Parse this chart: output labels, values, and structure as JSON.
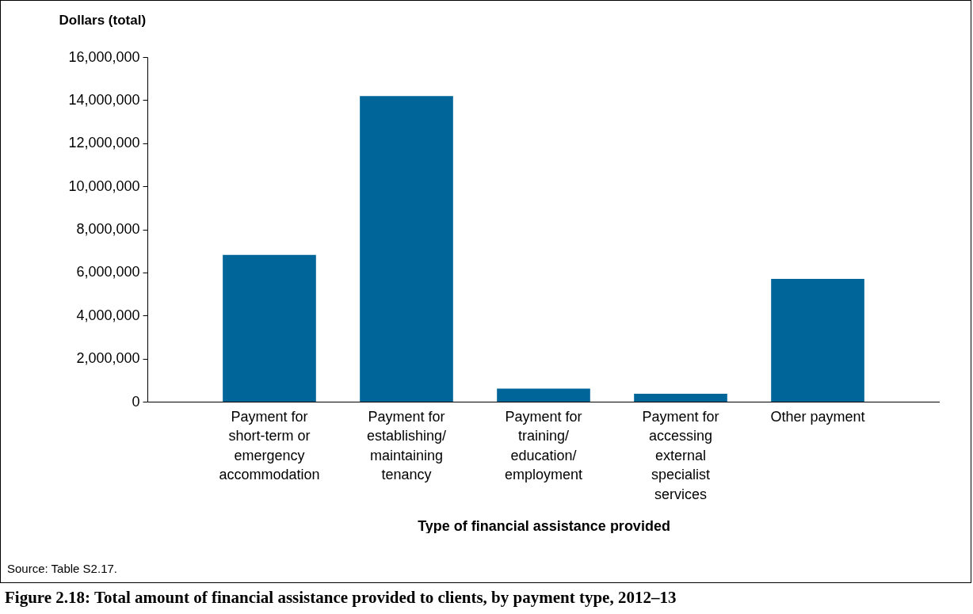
{
  "chart_data": {
    "type": "bar",
    "title": "Figure 2.18: Total amount of financial assistance provided to clients, by payment type, 2012–13",
    "xlabel": "Type of financial assistance provided",
    "ylabel": "Dollars (total)",
    "categories": [
      "Payment for short-term or emergency accommodation",
      "Payment for establishing/maintaining tenancy",
      "Payment for training/education/employment",
      "Payment for accessing external specialist services",
      "Other payment"
    ],
    "values": [
      6810000,
      14190000,
      610000,
      370000,
      5700000
    ],
    "color": "#006699",
    "ylim": [
      0,
      16000000
    ],
    "yticks": [
      0,
      {
        "value": 2000000,
        "label": "2,000,000"
      },
      {
        "value": 4000000,
        "label": "4,000,000"
      },
      {
        "value": 6000000,
        "label": "6,000,000"
      },
      {
        "value": 8000000,
        "label": "8,000,000"
      },
      {
        "value": 10000000,
        "label": "10,000,000"
      },
      {
        "value": 12000000,
        "label": "12,000,000"
      },
      {
        "value": 14000000,
        "label": "14,000,000"
      },
      {
        "value": 16000000,
        "label": "16,000,000"
      }
    ],
    "grid": false,
    "annotations": [
      "Source: Table S2.17."
    ]
  }
}
